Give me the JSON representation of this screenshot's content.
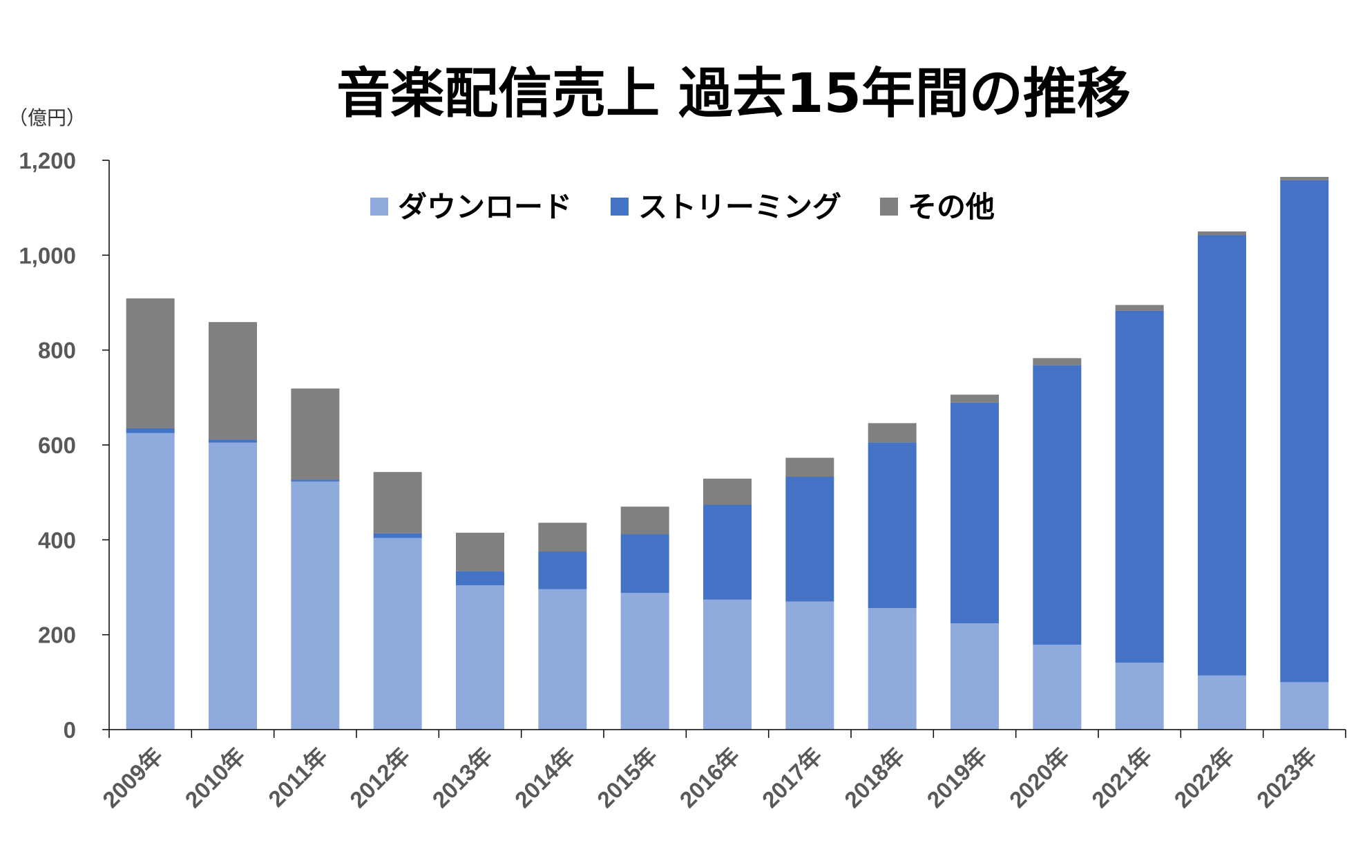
{
  "chart_data": {
    "type": "bar",
    "stacked": true,
    "title": "音楽配信売上 過去15年間の推移",
    "unit_label": "（億円）",
    "categories": [
      "2009年",
      "2010年",
      "2011年",
      "2012年",
      "2013年",
      "2014年",
      "2015年",
      "2016年",
      "2017年",
      "2018年",
      "2019年",
      "2020年",
      "2021年",
      "2022年",
      "2023年"
    ],
    "series": [
      {
        "name": "ダウンロード",
        "color": "#8faadc",
        "values": [
          625,
          605,
          523,
          404,
          304,
          296,
          288,
          274,
          270,
          256,
          224,
          179,
          141,
          114,
          100
        ]
      },
      {
        "name": "ストリーミング",
        "color": "#4472c4",
        "values": [
          10,
          6,
          4,
          10,
          30,
          79,
          124,
          200,
          263,
          349,
          465,
          589,
          742,
          928,
          1058
        ]
      },
      {
        "name": "その他",
        "color": "#808080",
        "values": [
          274,
          248,
          192,
          129,
          81,
          61,
          58,
          55,
          40,
          41,
          17,
          15,
          12,
          8,
          7
        ]
      }
    ],
    "ylim": [
      0,
      1200
    ],
    "yticks": [
      "0",
      "200",
      "400",
      "600",
      "800",
      "1,000",
      "1,200"
    ],
    "ytick_values": [
      0,
      200,
      400,
      600,
      800,
      1000,
      1200
    ],
    "grid": false,
    "legend_position": "top"
  }
}
